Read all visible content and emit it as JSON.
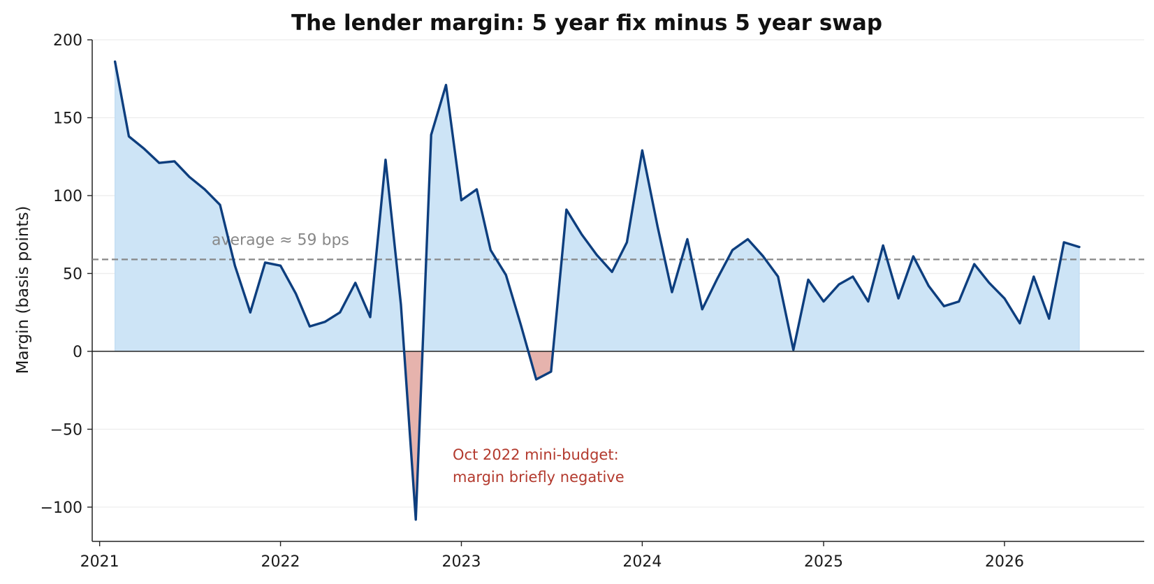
{
  "chart_data": {
    "type": "line",
    "title": "The lender margin: 5 year fix minus 5 year swap",
    "xlabel": "",
    "ylabel": "Margin (basis points)",
    "x_ticks": [
      "2021",
      "2022",
      "2023",
      "2024",
      "2025",
      "2026"
    ],
    "y_ticks": [
      "200",
      "150",
      "100",
      "50",
      "0",
      "-50",
      "-100"
    ],
    "xlim": [
      "2020-12-17",
      "2026-10-10"
    ],
    "ylim": [
      -122,
      200
    ],
    "grid": "horizontal",
    "average": {
      "value": 59,
      "label": "average ≈ 59 bps"
    },
    "annotation": {
      "lines": [
        "Oct 2022 mini-budget:",
        "margin briefly negative"
      ]
    },
    "colors": {
      "line": "#0d3e7e",
      "positive_fill": "#cde4f6",
      "negative_fill": "#e6b3ad",
      "average": "#888888",
      "annotation": "#b33a2e"
    },
    "series": [
      {
        "x": [
          "2021-02-01",
          "2021-03-01",
          "2021-04-01",
          "2021-05-01",
          "2021-06-01",
          "2021-07-01",
          "2021-08-01",
          "2021-09-01",
          "2021-10-01",
          "2021-11-01",
          "2021-12-01",
          "2022-01-01",
          "2022-02-01",
          "2022-03-01",
          "2022-04-01",
          "2022-05-01",
          "2022-06-01",
          "2022-07-01",
          "2022-08-01",
          "2022-09-01",
          "2022-10-01",
          "2022-11-01",
          "2022-12-01",
          "2023-01-01",
          "2023-02-01",
          "2023-03-01",
          "2023-04-01",
          "2023-05-01",
          "2023-06-01",
          "2023-07-01",
          "2023-08-01",
          "2023-09-01",
          "2023-10-01",
          "2023-11-01",
          "2023-12-01",
          "2024-01-01",
          "2024-02-01",
          "2024-03-01",
          "2024-04-01",
          "2024-05-01",
          "2024-06-01",
          "2024-07-01",
          "2024-08-01",
          "2024-09-01",
          "2024-10-01",
          "2024-11-01",
          "2024-12-01",
          "2025-01-01",
          "2025-02-01",
          "2025-03-01",
          "2025-04-01",
          "2025-05-01",
          "2025-06-01",
          "2025-07-01",
          "2025-08-01",
          "2025-09-01",
          "2025-10-01",
          "2025-11-01",
          "2025-12-01",
          "2026-01-01",
          "2026-02-01",
          "2026-03-01",
          "2026-04-01",
          "2026-05-01",
          "2026-06-01"
        ],
        "values": [
          186,
          138,
          130,
          121,
          122,
          112,
          104,
          94,
          55,
          25,
          57,
          55,
          37,
          16,
          19,
          25,
          44,
          22,
          123,
          30,
          -108,
          139,
          171,
          97,
          104,
          65,
          49,
          17,
          -18,
          -13,
          91,
          75,
          62,
          51,
          70,
          129,
          80,
          38,
          72,
          27,
          47,
          65,
          72,
          61,
          48,
          1,
          46,
          32,
          43,
          48,
          32,
          68,
          34,
          61,
          42,
          29,
          32,
          56,
          44,
          34,
          18,
          48,
          21,
          70,
          67
        ]
      }
    ]
  }
}
